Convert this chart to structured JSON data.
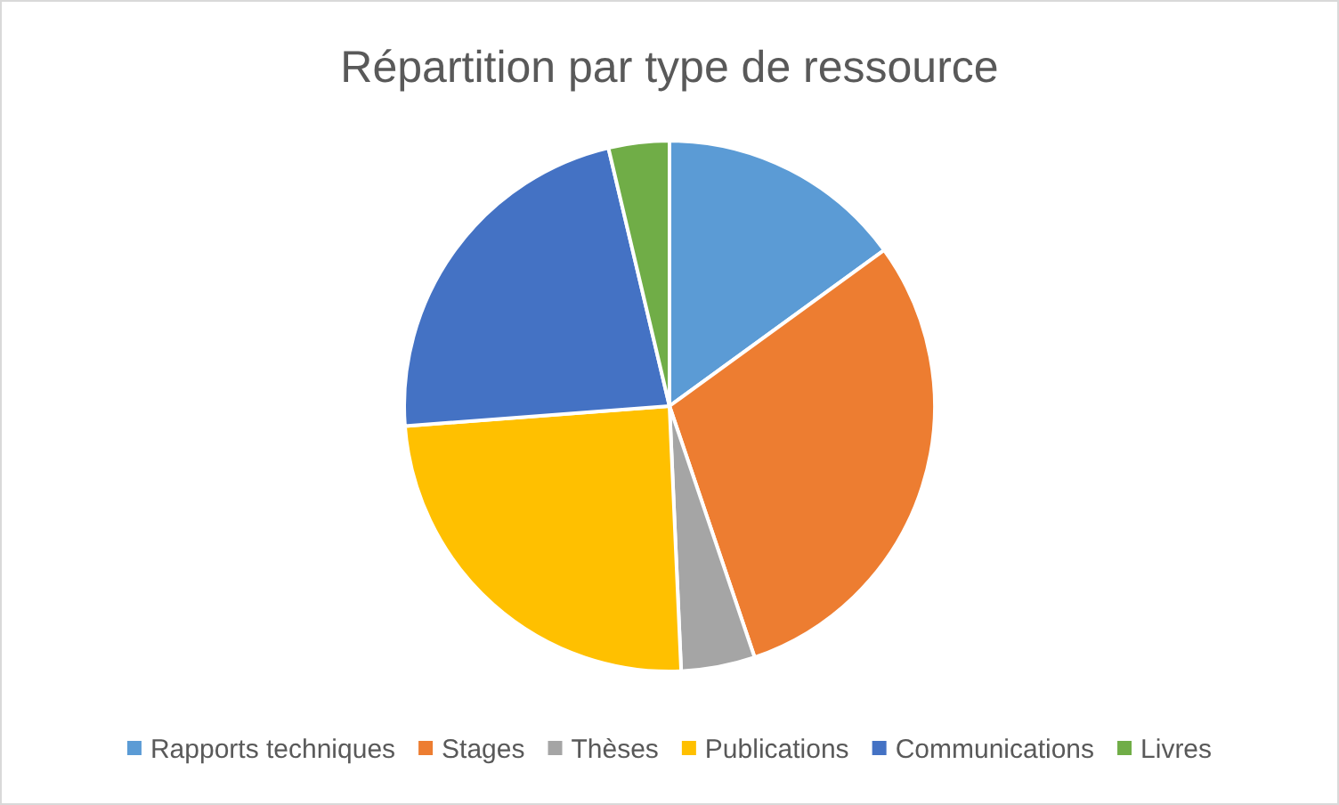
{
  "chart_data": {
    "type": "pie",
    "title": "Répartition par type de ressource",
    "categories": [
      "Rapports techniques",
      "Stages",
      "Thèses",
      "Publications",
      "Communications",
      "Livres"
    ],
    "values": [
      15.0,
      29.8,
      4.5,
      24.5,
      22.5,
      3.7
    ],
    "colors": [
      "#5b9bd5",
      "#ed7d31",
      "#a5a5a5",
      "#ffc000",
      "#4472c4",
      "#70ad47"
    ],
    "legend": "bottom"
  }
}
